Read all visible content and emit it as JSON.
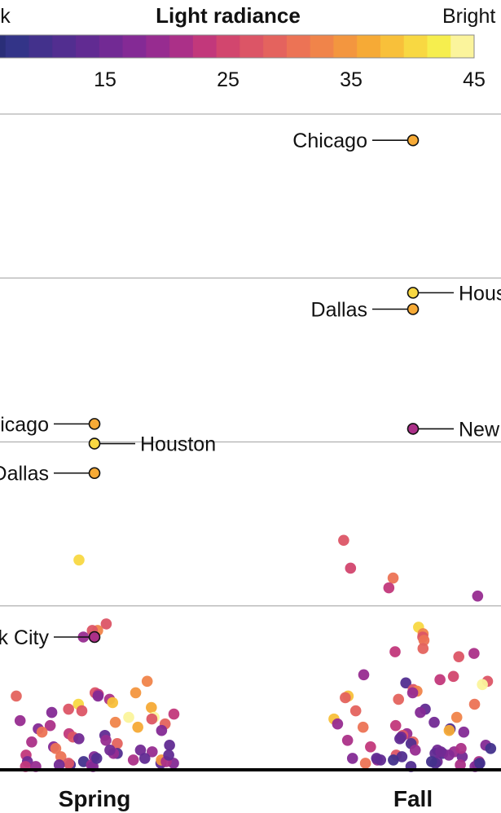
{
  "chart_data": {
    "type": "scatter",
    "subtype": "beeswarm",
    "legend": {
      "title": "Light radiance",
      "low_label": "Dark",
      "high_label": "Bright",
      "range": [
        5,
        45
      ],
      "ticks": [
        "15",
        "25",
        "35",
        "45"
      ],
      "tick_values": [
        15,
        25,
        35,
        45
      ],
      "colors": [
        "#2a2e78",
        "#333488",
        "#43318c",
        "#522e90",
        "#612b92",
        "#722a94",
        "#842a95",
        "#972c90",
        "#ab3088",
        "#c2387b",
        "#d2466e",
        "#dc5566",
        "#e4635e",
        "#ec7355",
        "#f0844a",
        "#f3963f",
        "#f6aa36",
        "#f8c03a",
        "#f8d842",
        "#f6ee4e",
        "#fbf49c"
      ]
    },
    "categories": [
      "Spring",
      "Fall"
    ],
    "y_axis": {
      "gridlines": [
        1,
        2,
        3,
        4
      ],
      "range": [
        0,
        4
      ],
      "labels_visible": false
    },
    "highlighted": [
      {
        "category": "Spring",
        "city": "Chicago",
        "y": 2.11,
        "radiance": 37
      },
      {
        "category": "Spring",
        "city": "Houston",
        "y": 1.99,
        "radiance": 41
      },
      {
        "category": "Spring",
        "city": "Dallas",
        "y": 1.81,
        "radiance": 37
      },
      {
        "category": "Spring",
        "city": "New York City",
        "y": 0.81,
        "radiance": 22
      },
      {
        "category": "Fall",
        "city": "Chicago",
        "y": 3.84,
        "radiance": 37
      },
      {
        "category": "Fall",
        "city": "Houston",
        "y": 2.91,
        "radiance": 40
      },
      {
        "category": "Fall",
        "city": "Dallas",
        "y": 2.81,
        "radiance": 37
      },
      {
        "category": "Fall",
        "city": "New York",
        "y": 2.08,
        "radiance": 21
      }
    ],
    "other_points": {
      "Spring": [
        [
          1.28,
          40
        ],
        [
          0.89,
          26
        ],
        [
          0.85,
          33
        ],
        [
          0.85,
          26
        ],
        [
          0.81,
          20
        ],
        [
          0.54,
          32
        ],
        [
          0.47,
          34
        ],
        [
          0.47,
          26
        ],
        [
          0.46,
          24
        ],
        [
          0.45,
          18
        ],
        [
          0.45,
          29
        ],
        [
          0.43,
          22
        ],
        [
          0.41,
          38
        ],
        [
          0.4,
          40
        ],
        [
          0.38,
          36
        ],
        [
          0.37,
          26
        ],
        [
          0.36,
          27
        ],
        [
          0.35,
          18
        ],
        [
          0.34,
          24
        ],
        [
          0.32,
          44
        ],
        [
          0.32,
          44
        ],
        [
          0.31,
          26
        ],
        [
          0.3,
          20
        ],
        [
          0.29,
          33
        ],
        [
          0.28,
          28
        ],
        [
          0.27,
          22
        ],
        [
          0.26,
          36
        ],
        [
          0.25,
          17
        ],
        [
          0.24,
          18
        ],
        [
          0.23,
          30
        ],
        [
          0.22,
          24
        ],
        [
          0.21,
          14
        ],
        [
          0.2,
          26
        ],
        [
          0.19,
          16
        ],
        [
          0.18,
          20
        ],
        [
          0.17,
          22
        ],
        [
          0.16,
          28
        ],
        [
          0.15,
          14
        ],
        [
          0.14,
          18
        ],
        [
          0.13,
          30
        ],
        [
          0.12,
          16
        ],
        [
          0.11,
          20
        ],
        [
          0.1,
          12
        ],
        [
          0.09,
          24
        ],
        [
          0.08,
          18
        ],
        [
          0.07,
          14
        ],
        [
          0.06,
          22
        ],
        [
          0.05,
          16
        ],
        [
          0.05,
          10
        ],
        [
          0.04,
          18
        ],
        [
          0.04,
          14
        ],
        [
          0.03,
          20
        ],
        [
          0.03,
          12
        ],
        [
          0.02,
          17
        ],
        [
          0.02,
          24
        ],
        [
          0.06,
          35
        ],
        [
          0.08,
          30
        ],
        [
          0.04,
          26
        ],
        [
          0.1,
          19
        ],
        [
          0.12,
          15
        ],
        [
          0.07,
          11
        ],
        [
          0.03,
          16
        ],
        [
          0.05,
          21
        ],
        [
          0.09,
          13
        ],
        [
          0.02,
          19
        ]
      ],
      "Fall": [
        [
          1.4,
          26
        ],
        [
          1.23,
          25
        ],
        [
          1.17,
          31
        ],
        [
          1.11,
          24
        ],
        [
          1.06,
          20
        ],
        [
          0.87,
          40
        ],
        [
          0.83,
          32
        ],
        [
          0.81,
          26
        ],
        [
          0.79,
          30
        ],
        [
          0.74,
          28
        ],
        [
          0.72,
          24
        ],
        [
          0.71,
          22
        ],
        [
          0.69,
          26
        ],
        [
          0.58,
          20
        ],
        [
          0.57,
          25
        ],
        [
          0.55,
          24
        ],
        [
          0.54,
          26
        ],
        [
          0.53,
          12
        ],
        [
          0.52,
          44
        ],
        [
          0.49,
          26
        ],
        [
          0.48,
          32
        ],
        [
          0.47,
          20
        ],
        [
          0.45,
          38
        ],
        [
          0.44,
          29
        ],
        [
          0.43,
          28
        ],
        [
          0.4,
          30
        ],
        [
          0.37,
          14
        ],
        [
          0.36,
          28
        ],
        [
          0.35,
          18
        ],
        [
          0.32,
          32
        ],
        [
          0.31,
          38
        ],
        [
          0.29,
          16
        ],
        [
          0.28,
          20
        ],
        [
          0.27,
          24
        ],
        [
          0.26,
          30
        ],
        [
          0.25,
          12
        ],
        [
          0.24,
          36
        ],
        [
          0.23,
          18
        ],
        [
          0.22,
          20
        ],
        [
          0.21,
          26
        ],
        [
          0.2,
          16
        ],
        [
          0.19,
          14
        ],
        [
          0.18,
          22
        ],
        [
          0.17,
          28
        ],
        [
          0.16,
          12
        ],
        [
          0.15,
          18
        ],
        [
          0.14,
          24
        ],
        [
          0.13,
          10
        ],
        [
          0.12,
          16
        ],
        [
          0.11,
          20
        ],
        [
          0.1,
          14
        ],
        [
          0.09,
          26
        ],
        [
          0.08,
          12
        ],
        [
          0.07,
          18
        ],
        [
          0.06,
          10
        ],
        [
          0.05,
          16
        ],
        [
          0.05,
          22
        ],
        [
          0.04,
          12
        ],
        [
          0.04,
          30
        ],
        [
          0.03,
          14
        ],
        [
          0.03,
          10
        ],
        [
          0.02,
          18
        ],
        [
          0.02,
          12
        ],
        [
          0.06,
          20
        ],
        [
          0.08,
          15
        ],
        [
          0.1,
          11
        ],
        [
          0.12,
          19
        ],
        [
          0.07,
          13
        ],
        [
          0.09,
          17
        ],
        [
          0.03,
          22
        ],
        [
          0.05,
          10
        ],
        [
          0.11,
          15
        ],
        [
          0.13,
          21
        ],
        [
          0.04,
          9
        ],
        [
          0.06,
          14
        ]
      ]
    }
  }
}
